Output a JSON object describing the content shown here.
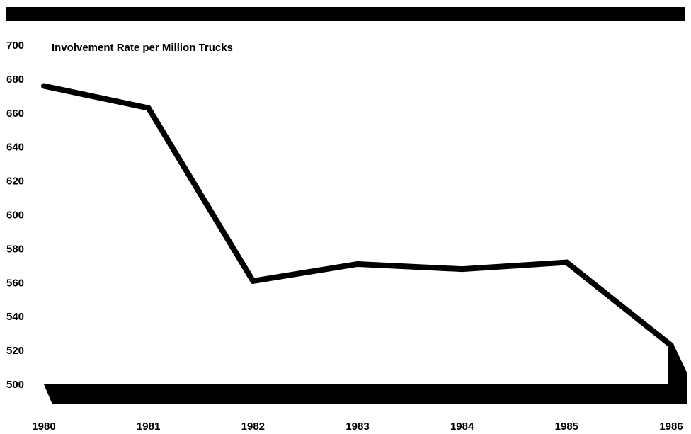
{
  "chart_data": {
    "type": "line",
    "title": "Involvement Rate per Million Trucks",
    "xlabel": "",
    "ylabel": "",
    "x": [
      "1980",
      "1981",
      "1982",
      "1983",
      "1984",
      "1985",
      "1986"
    ],
    "series": [
      {
        "values": [
          676,
          663,
          561,
          571,
          568,
          572,
          523
        ]
      }
    ],
    "y_ticks": [
      "700",
      "680",
      "660",
      "640",
      "620",
      "600",
      "580",
      "560",
      "540",
      "520",
      "500"
    ],
    "ylim": [
      500,
      700
    ],
    "grid": false,
    "legend": "none",
    "colors": {
      "line": "#000000",
      "band": "#000000"
    }
  }
}
